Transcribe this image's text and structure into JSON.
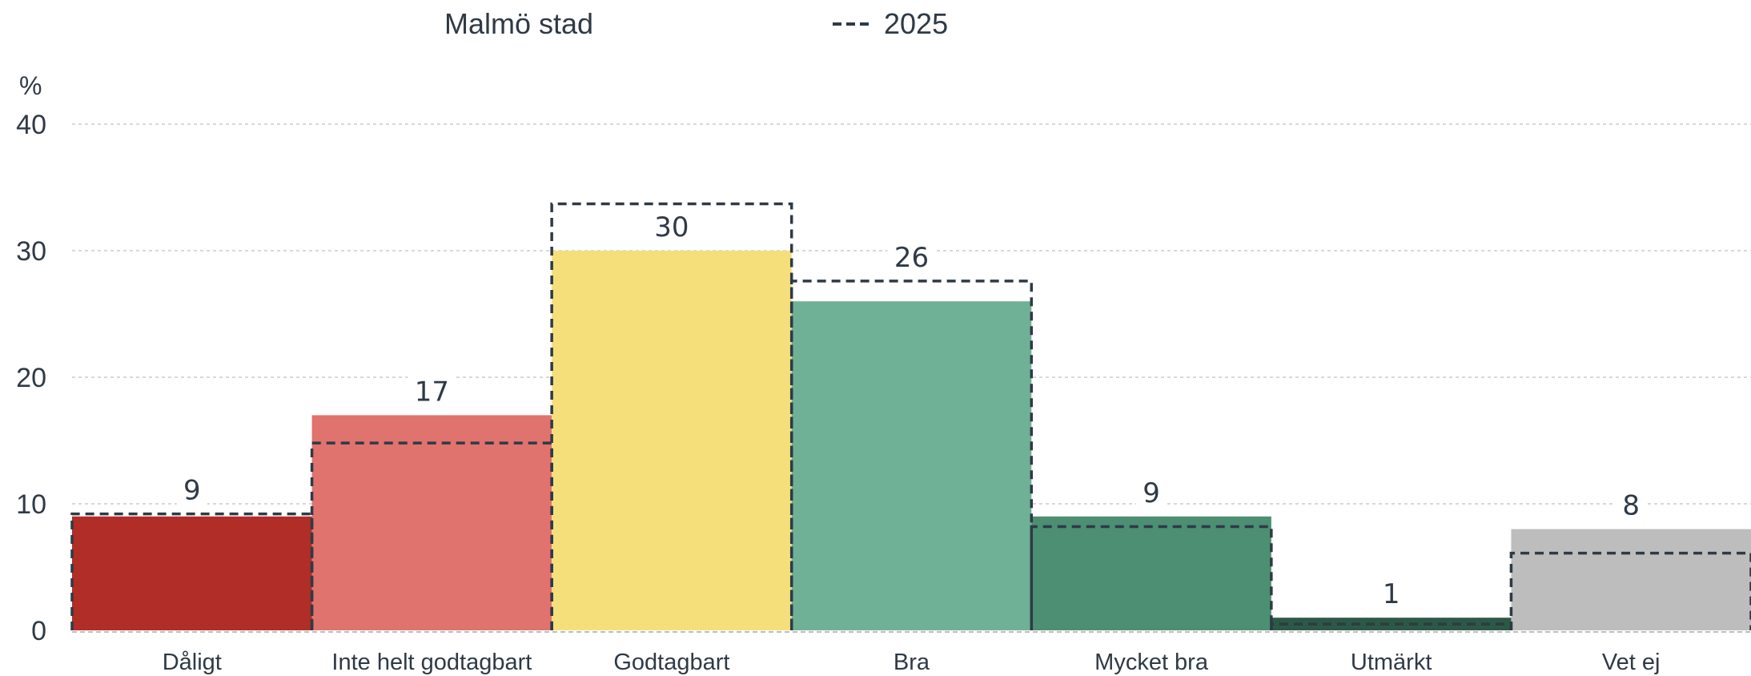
{
  "chart_data": {
    "type": "bar",
    "categories": [
      "Dåligt",
      "Inte helt godtagbart",
      "Godtagbart",
      "Bra",
      "Mycket bra",
      "Utmärkt",
      "Vet ej"
    ],
    "series": [
      {
        "name": "Malmö stad",
        "values": [
          9,
          17,
          30,
          26,
          9,
          1,
          8
        ],
        "colors": [
          "#b02e27",
          "#e0736d",
          "#f5df7b",
          "#6fb196",
          "#4c8f72",
          "#2b5945",
          "#bdbdbd"
        ]
      },
      {
        "name": "2025",
        "values": [
          9.2,
          14.8,
          33.7,
          27.6,
          8.2,
          0.5,
          6.1
        ],
        "style": "dashed",
        "color": "#2f3a46"
      }
    ],
    "data_labels": [
      "9",
      "17",
      "30",
      "26",
      "9",
      "1",
      "8"
    ],
    "y_unit": "%",
    "yticks": [
      0,
      10,
      20,
      30,
      40
    ],
    "ylim": [
      0,
      40
    ],
    "grid": true,
    "legend_position": "top"
  }
}
